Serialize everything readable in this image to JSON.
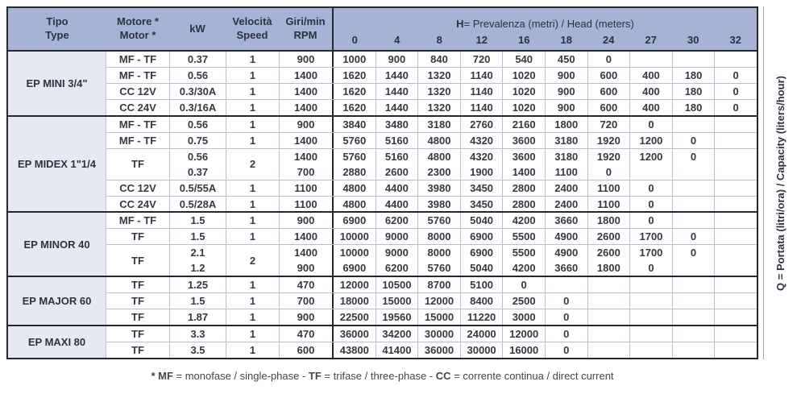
{
  "table": {
    "columns": [
      {
        "line1": "Tipo",
        "line2": "Type"
      },
      {
        "line1": "Motore *",
        "line2": "Motor *"
      },
      {
        "line1": "kW",
        "line2": ""
      },
      {
        "line1": "Velocità",
        "line2": "Speed"
      },
      {
        "line1": "Giri/min",
        "line2": "RPM"
      }
    ],
    "head_header_segments": [
      {
        "text": "H",
        "bold": true
      },
      {
        "text": " = Prevalenza (metri) / Head (meters)",
        "bold": false
      }
    ],
    "head_columns": [
      "0",
      "4",
      "8",
      "12",
      "16",
      "18",
      "24",
      "27",
      "30",
      "32"
    ],
    "groups": [
      {
        "name": "EP MINI 3/4\"",
        "rows": [
          {
            "motor": "MF - TF",
            "kw": [
              "0.37"
            ],
            "speed": "1",
            "rpm": [
              "900"
            ],
            "values": [
              [
                "1000",
                "900",
                "840",
                "720",
                "540",
                "450",
                "0",
                "",
                "",
                ""
              ]
            ]
          },
          {
            "motor": "MF - TF",
            "kw": [
              "0.56"
            ],
            "speed": "1",
            "rpm": [
              "1400"
            ],
            "values": [
              [
                "1620",
                "1440",
                "1320",
                "1140",
                "1020",
                "900",
                "600",
                "400",
                "180",
                "0"
              ]
            ]
          },
          {
            "motor": "CC 12V",
            "kw": [
              "0.3/30A"
            ],
            "speed": "1",
            "rpm": [
              "1400"
            ],
            "values": [
              [
                "1620",
                "1440",
                "1320",
                "1140",
                "1020",
                "900",
                "600",
                "400",
                "180",
                "0"
              ]
            ]
          },
          {
            "motor": "CC 24V",
            "kw": [
              "0.3/16A"
            ],
            "speed": "1",
            "rpm": [
              "1400"
            ],
            "values": [
              [
                "1620",
                "1440",
                "1320",
                "1140",
                "1020",
                "900",
                "600",
                "400",
                "180",
                "0"
              ]
            ]
          }
        ]
      },
      {
        "name": "EP MIDEX 1\"1/4",
        "rows": [
          {
            "motor": "MF - TF",
            "kw": [
              "0.56"
            ],
            "speed": "1",
            "rpm": [
              "900"
            ],
            "values": [
              [
                "3840",
                "3480",
                "3180",
                "2760",
                "2160",
                "1800",
                "720",
                "0",
                "",
                ""
              ]
            ]
          },
          {
            "motor": "MF - TF",
            "kw": [
              "0.75"
            ],
            "speed": "1",
            "rpm": [
              "1400"
            ],
            "values": [
              [
                "5760",
                "5160",
                "4800",
                "4320",
                "3600",
                "3180",
                "1920",
                "1200",
                "0",
                ""
              ]
            ]
          },
          {
            "motor": "TF",
            "kw": [
              "0.56",
              "0.37"
            ],
            "speed": "2",
            "rpm": [
              "1400",
              "700"
            ],
            "values": [
              [
                "5760",
                "5160",
                "4800",
                "4320",
                "3600",
                "3180",
                "1920",
                "1200",
                "0",
                ""
              ],
              [
                "2880",
                "2600",
                "2300",
                "1900",
                "1400",
                "1100",
                "0",
                "",
                "",
                ""
              ]
            ]
          },
          {
            "motor": "CC 12V",
            "kw": [
              "0.5/55A"
            ],
            "speed": "1",
            "rpm": [
              "1100"
            ],
            "values": [
              [
                "4800",
                "4400",
                "3980",
                "3450",
                "2800",
                "2400",
                "1100",
                "0",
                "",
                ""
              ]
            ]
          },
          {
            "motor": "CC 24V",
            "kw": [
              "0.5/28A"
            ],
            "speed": "1",
            "rpm": [
              "1100"
            ],
            "values": [
              [
                "4800",
                "4400",
                "3980",
                "3450",
                "2800",
                "2400",
                "1100",
                "0",
                "",
                ""
              ]
            ]
          }
        ]
      },
      {
        "name": "EP MINOR 40",
        "rows": [
          {
            "motor": "MF - TF",
            "kw": [
              "1.5"
            ],
            "speed": "1",
            "rpm": [
              "900"
            ],
            "values": [
              [
                "6900",
                "6200",
                "5760",
                "5040",
                "4200",
                "3660",
                "1800",
                "0",
                "",
                ""
              ]
            ]
          },
          {
            "motor": "TF",
            "kw": [
              "1.5"
            ],
            "speed": "1",
            "rpm": [
              "1400"
            ],
            "values": [
              [
                "10000",
                "9000",
                "8000",
                "6900",
                "5500",
                "4900",
                "2600",
                "1700",
                "0",
                ""
              ]
            ]
          },
          {
            "motor": "TF",
            "kw": [
              "2.1",
              "1.2"
            ],
            "speed": "2",
            "rpm": [
              "1400",
              "900"
            ],
            "values": [
              [
                "10000",
                "9000",
                "8000",
                "6900",
                "5500",
                "4900",
                "2600",
                "1700",
                "0",
                ""
              ],
              [
                "6900",
                "6200",
                "5760",
                "5040",
                "4200",
                "3660",
                "1800",
                "0",
                "",
                ""
              ]
            ]
          }
        ]
      },
      {
        "name": "EP MAJOR 60",
        "rows": [
          {
            "motor": "TF",
            "kw": [
              "1.25"
            ],
            "speed": "1",
            "rpm": [
              "470"
            ],
            "values": [
              [
                "12000",
                "10500",
                "8700",
                "5100",
                "0",
                "",
                "",
                "",
                "",
                ""
              ]
            ]
          },
          {
            "motor": "TF",
            "kw": [
              "1.5"
            ],
            "speed": "1",
            "rpm": [
              "700"
            ],
            "values": [
              [
                "18000",
                "15000",
                "12000",
                "8400",
                "2500",
                "0",
                "",
                "",
                "",
                ""
              ]
            ]
          },
          {
            "motor": "TF",
            "kw": [
              "1.87"
            ],
            "speed": "1",
            "rpm": [
              "900"
            ],
            "values": [
              [
                "22500",
                "19560",
                "15000",
                "11220",
                "3000",
                "0",
                "",
                "",
                "",
                ""
              ]
            ]
          }
        ]
      },
      {
        "name": "EP MAXI 80",
        "rows": [
          {
            "motor": "TF",
            "kw": [
              "3.3"
            ],
            "speed": "1",
            "rpm": [
              "470"
            ],
            "values": [
              [
                "36000",
                "34200",
                "30000",
                "24000",
                "12000",
                "0",
                "",
                "",
                "",
                ""
              ]
            ]
          },
          {
            "motor": "TF",
            "kw": [
              "3.5"
            ],
            "speed": "1",
            "rpm": [
              "600"
            ],
            "values": [
              [
                "43800",
                "41400",
                "36000",
                "30000",
                "16000",
                "0",
                "",
                "",
                "",
                ""
              ]
            ]
          }
        ]
      }
    ]
  },
  "side_label": "Q = Portata (litri/ora) / Capacity (liters/hour)",
  "footnote_segments": [
    {
      "text": "* MF",
      "bold": true
    },
    {
      "text": " = monofase / single-phase - ",
      "bold": false
    },
    {
      "text": "TF",
      "bold": true
    },
    {
      "text": " = trifase / three-phase - ",
      "bold": false
    },
    {
      "text": "CC",
      "bold": true
    },
    {
      "text": " = corrente continua / direct current",
      "bold": false
    }
  ],
  "colors": {
    "header_bg": "#a6b2d6",
    "group_col_bg": "#e6e8f3",
    "thin_line": "#b6c0da",
    "thick_line": "#26262e",
    "text": "#2e3140"
  }
}
